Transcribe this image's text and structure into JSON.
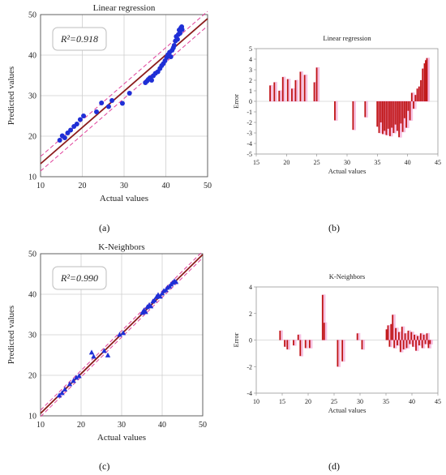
{
  "figure": {
    "panel_labels": [
      "(a)",
      "(b)",
      "(c)",
      "(d)"
    ]
  },
  "chart_data": [
    {
      "id": "a",
      "type": "scatter",
      "title": "Linear regression",
      "xlabel": "Actual values",
      "ylabel": "Predicted values",
      "annotation": "R²=0.918",
      "xlim": [
        10,
        50
      ],
      "ylim": [
        10,
        50
      ],
      "xticks": [
        10,
        20,
        30,
        40,
        50
      ],
      "yticks": [
        10,
        20,
        30,
        40,
        50
      ],
      "grid": true,
      "marker": "circle",
      "marker_color": "#1f2fd6",
      "line_color": "#8b1c1c",
      "band_color": "#e0409a",
      "fit_line": {
        "x": [
          10,
          50
        ],
        "y": [
          13.2,
          49.0
        ]
      },
      "band_upper": {
        "x": [
          10,
          50
        ],
        "y": [
          15.0,
          50.8
        ]
      },
      "band_lower": {
        "x": [
          10,
          50
        ],
        "y": [
          11.4,
          47.2
        ]
      },
      "points": {
        "x": [
          14.6,
          15.2,
          15.8,
          16.5,
          17.2,
          18.0,
          18.7,
          19.5,
          20.3,
          23.4,
          24.6,
          26.3,
          27.1,
          29.6,
          31.3,
          35.1,
          35.5,
          35.8,
          36.2,
          36.6,
          37.0,
          37.5,
          38.1,
          38.6,
          39.0,
          39.4,
          39.8,
          40.2,
          40.5,
          40.9,
          41.2,
          41.5,
          41.8,
          42.0,
          42.3,
          42.5,
          42.8,
          43.0,
          43.2,
          43.4,
          43.6,
          43.8,
          43.9
        ],
        "y": [
          19.0,
          20.1,
          19.6,
          20.8,
          21.5,
          22.4,
          23.0,
          24.1,
          25.0,
          26.0,
          28.2,
          27.3,
          28.8,
          28.1,
          30.6,
          33.2,
          33.6,
          34.0,
          34.4,
          33.8,
          34.9,
          35.5,
          35.9,
          36.7,
          37.4,
          37.9,
          38.6,
          39.4,
          40.1,
          40.7,
          39.6,
          41.2,
          41.8,
          42.4,
          43.5,
          44.6,
          43.9,
          45.1,
          46.2,
          45.4,
          46.7,
          47.0,
          46.3
        ]
      }
    },
    {
      "id": "b",
      "type": "bar",
      "title": "Linear regression",
      "xlabel": "Actual values",
      "ylabel": "Error",
      "xlim": [
        15,
        45
      ],
      "ylim": [
        -5,
        5
      ],
      "xticks": [
        15,
        20,
        25,
        30,
        35,
        40,
        45
      ],
      "yticks": [
        5,
        4,
        3,
        2,
        1,
        0,
        -1,
        -2,
        -3,
        -4,
        -5
      ],
      "grid": false,
      "bar_color": "#c01515",
      "shadow_color": "#f2a6d6",
      "x": [
        17.3,
        18.0,
        18.8,
        19.4,
        20.2,
        20.9,
        21.5,
        22.3,
        23.0,
        24.6,
        25.0,
        28.0,
        31.0,
        33.0,
        35.0,
        35.3,
        35.6,
        35.9,
        36.2,
        36.5,
        36.8,
        37.1,
        37.4,
        37.7,
        38.0,
        38.3,
        38.6,
        38.9,
        39.2,
        39.5,
        39.8,
        40.1,
        40.4,
        40.7,
        41.0,
        41.3,
        41.6,
        41.9,
        42.2,
        42.5,
        42.8,
        43.0,
        43.2
      ],
      "values": [
        1.5,
        1.8,
        1.0,
        2.3,
        2.1,
        1.2,
        2.0,
        2.8,
        2.5,
        1.8,
        3.2,
        -1.8,
        -2.7,
        -1.5,
        -2.4,
        -3.0,
        -2.0,
        -3.1,
        -2.8,
        -3.2,
        -2.6,
        -3.3,
        -2.5,
        -3.0,
        -2.2,
        -2.8,
        -3.4,
        -2.1,
        -2.9,
        -1.6,
        -2.5,
        -0.9,
        -1.8,
        0.8,
        -0.7,
        0.6,
        1.2,
        1.4,
        2.0,
        3.1,
        3.6,
        3.9,
        4.1
      ]
    },
    {
      "id": "c",
      "type": "scatter",
      "title": "K-Neighbors",
      "xlabel": "Actual values",
      "ylabel": "Predicted values",
      "annotation": "R²=0.990",
      "xlim": [
        10,
        50
      ],
      "ylim": [
        10,
        50
      ],
      "xticks": [
        10,
        20,
        30,
        40,
        50
      ],
      "yticks": [
        10,
        20,
        30,
        40,
        50
      ],
      "grid": true,
      "marker": "triangle",
      "marker_color": "#1f2fd6",
      "line_color": "#8b1c1c",
      "band_color": "#e0409a",
      "fit_line": {
        "x": [
          10,
          50
        ],
        "y": [
          10.6,
          49.8
        ]
      },
      "band_upper": {
        "x": [
          10,
          50
        ],
        "y": [
          11.4,
          50.6
        ]
      },
      "band_lower": {
        "x": [
          10,
          50
        ],
        "y": [
          9.8,
          49.0
        ]
      },
      "points": {
        "x": [
          14.6,
          15.3,
          16.0,
          17.2,
          18.1,
          18.8,
          19.5,
          22.6,
          23.1,
          25.7,
          26.6,
          29.5,
          30.4,
          35.1,
          35.5,
          35.9,
          36.3,
          36.8,
          37.2,
          37.7,
          38.1,
          38.6,
          39.0,
          39.5,
          40.0,
          40.4,
          40.9,
          41.3,
          41.8,
          42.2,
          42.6,
          43.0,
          43.4
        ],
        "y": [
          15.0,
          15.6,
          16.5,
          17.8,
          18.6,
          19.4,
          19.8,
          25.6,
          24.6,
          26.0,
          24.9,
          30.0,
          30.4,
          35.4,
          36.0,
          35.6,
          36.8,
          37.3,
          37.0,
          38.2,
          38.5,
          39.3,
          39.8,
          39.4,
          40.2,
          40.8,
          41.0,
          41.6,
          41.9,
          42.4,
          42.8,
          43.2,
          43.0
        ]
      }
    },
    {
      "id": "d",
      "type": "bar",
      "title": "K-Neighbors",
      "xlabel": "Actual values",
      "ylabel": "Error",
      "xlim": [
        10,
        45
      ],
      "ylim": [
        -4,
        4
      ],
      "xticks": [
        10,
        15,
        20,
        25,
        30,
        35,
        40,
        45
      ],
      "yticks": [
        4,
        2,
        0,
        -2,
        -4
      ],
      "grid": false,
      "bar_color": "#c01515",
      "shadow_color": "#f2a6d6",
      "x": [
        14.6,
        15.5,
        16.0,
        17.2,
        18.1,
        18.5,
        19.5,
        20.3,
        22.8,
        23.1,
        25.7,
        26.6,
        29.5,
        30.4,
        35.1,
        35.4,
        35.7,
        36.0,
        36.3,
        36.6,
        36.9,
        37.2,
        37.5,
        37.8,
        38.1,
        38.4,
        38.7,
        39.0,
        39.3,
        39.6,
        39.9,
        40.2,
        40.5,
        40.8,
        41.1,
        41.4,
        41.7,
        42.0,
        42.3,
        42.6,
        42.9,
        43.2,
        43.5
      ],
      "values": [
        0.7,
        -0.5,
        -0.7,
        -0.4,
        0.4,
        -1.2,
        -0.6,
        -0.6,
        3.4,
        1.3,
        -2.0,
        -1.6,
        0.5,
        -0.7,
        0.8,
        1.1,
        -0.5,
        1.2,
        1.9,
        -0.6,
        0.9,
        -0.4,
        0.6,
        -0.9,
        1.0,
        -0.7,
        0.5,
        -0.6,
        0.7,
        -0.3,
        0.6,
        -0.5,
        0.4,
        -0.8,
        0.3,
        -0.4,
        0.5,
        -0.6,
        0.4,
        -0.3,
        0.5,
        -0.6,
        -0.3
      ]
    }
  ]
}
